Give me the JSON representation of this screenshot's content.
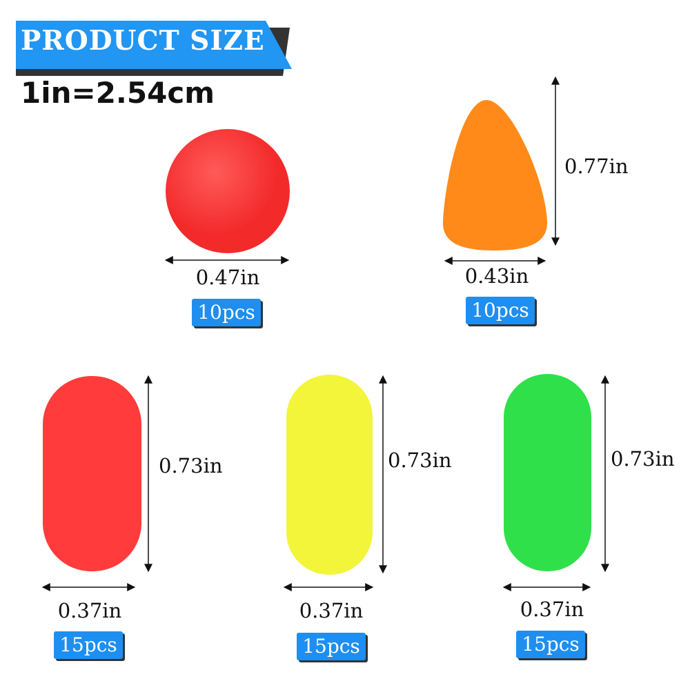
{
  "header": {
    "title": "PRODUCT SIZE",
    "conversion": "1in=2.54cm"
  },
  "colors": {
    "banner": "#2196f3",
    "badge": "#1e8ff0",
    "red": "#ff3b3b",
    "orange": "#ff8a1a",
    "yellow": "#f2f53a",
    "green": "#2fe04a"
  },
  "items": [
    {
      "shape": "ball",
      "color": "red",
      "width": "0.47in",
      "count": "10pcs"
    },
    {
      "shape": "teardrop",
      "color": "orange",
      "width": "0.43in",
      "height": "0.77in",
      "count": "10pcs"
    },
    {
      "shape": "capsule",
      "color": "red",
      "width": "0.37in",
      "height": "0.73in",
      "count": "15pcs"
    },
    {
      "shape": "capsule",
      "color": "yellow",
      "width": "0.37in",
      "height": "0.73in",
      "count": "15pcs"
    },
    {
      "shape": "capsule",
      "color": "green",
      "width": "0.37in",
      "height": "0.73in",
      "count": "15pcs"
    }
  ]
}
